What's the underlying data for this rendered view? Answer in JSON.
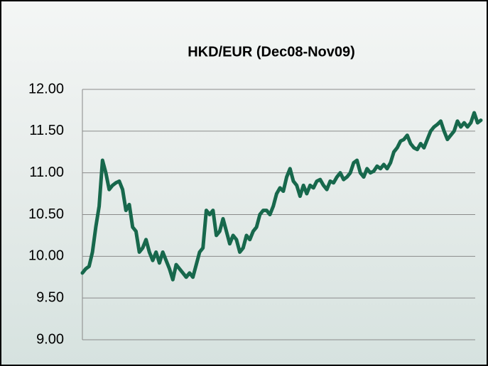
{
  "chart_data": {
    "type": "line",
    "title": "HKD/EUR (Dec08-Nov09)",
    "color": "#17684c",
    "grid": true,
    "ylim": [
      9,
      12
    ],
    "yticks": [
      {
        "value": 9,
        "label": "9.00"
      },
      {
        "value": 9.5,
        "label": "9.50"
      },
      {
        "value": 10,
        "label": "10.00"
      },
      {
        "value": 10.5,
        "label": "10.50"
      },
      {
        "value": 11,
        "label": "11.00"
      },
      {
        "value": 11.5,
        "label": "11.50"
      },
      {
        "value": 12,
        "label": "12.00"
      }
    ],
    "values": [
      9.8,
      9.85,
      9.88,
      10.05,
      10.35,
      10.6,
      11.15,
      11.0,
      10.8,
      10.85,
      10.88,
      10.9,
      10.8,
      10.55,
      10.62,
      10.35,
      10.3,
      10.05,
      10.1,
      10.2,
      10.05,
      9.95,
      10.05,
      9.92,
      10.05,
      9.95,
      9.85,
      9.72,
      9.9,
      9.85,
      9.8,
      9.75,
      9.8,
      9.75,
      9.9,
      10.05,
      10.1,
      10.55,
      10.5,
      10.55,
      10.25,
      10.3,
      10.45,
      10.3,
      10.15,
      10.25,
      10.2,
      10.05,
      10.1,
      10.25,
      10.2,
      10.3,
      10.35,
      10.5,
      10.55,
      10.55,
      10.5,
      10.6,
      10.75,
      10.82,
      10.78,
      10.95,
      11.05,
      10.9,
      10.85,
      10.72,
      10.85,
      10.75,
      10.85,
      10.82,
      10.9,
      10.92,
      10.85,
      10.8,
      10.9,
      10.88,
      10.95,
      11.0,
      10.92,
      10.95,
      11.0,
      11.12,
      11.15,
      11.0,
      10.95,
      11.05,
      11.0,
      11.02,
      11.08,
      11.05,
      11.1,
      11.05,
      11.12,
      11.25,
      11.3,
      11.38,
      11.4,
      11.45,
      11.35,
      11.3,
      11.28,
      11.35,
      11.3,
      11.4,
      11.5,
      11.55,
      11.58,
      11.62,
      11.5,
      11.4,
      11.45,
      11.5,
      11.62,
      11.55,
      11.6,
      11.55,
      11.6,
      11.72,
      11.6,
      11.63
    ]
  }
}
